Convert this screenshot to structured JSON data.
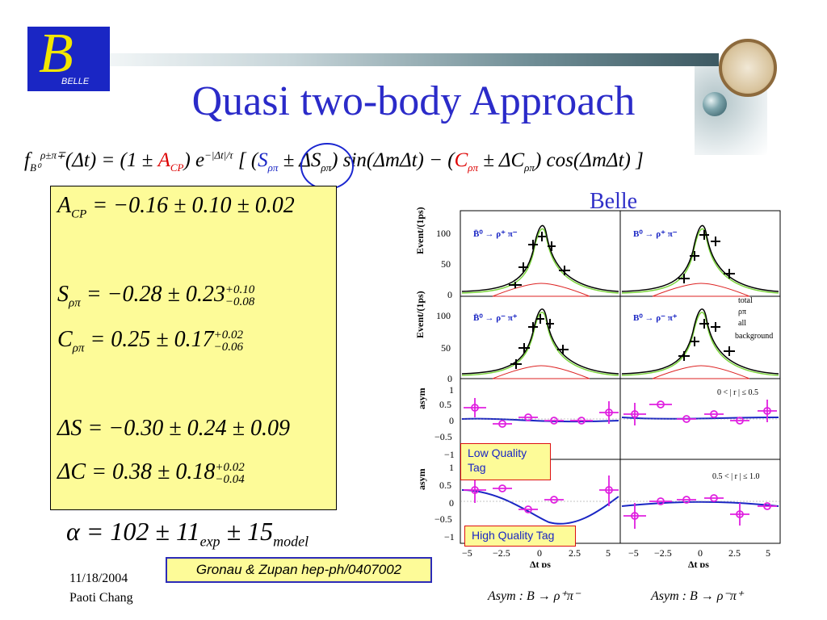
{
  "logo": {
    "letter": "B",
    "text": "BELLE"
  },
  "title": "Quasi two-body Approach",
  "formula": "f(Δt) = (1 ± A_CP) e^{−|Δt|/τ} [ (S_ρπ ± ΔS_ρπ) sin(ΔmΔt) − (C_ρπ ± ΔC_ρπ) cos(ΔmΔt) ]",
  "results": {
    "acp": "A_CP = −0.16 ± 0.10 ± 0.02",
    "s": "S_ρπ = −0.28 ± 0.23 +0.10 −0.08",
    "c": "C_ρπ = 0.25 ± 0.17 +0.02 −0.06",
    "ds": "ΔS = −0.30 ± 0.24 ± 0.09",
    "dc": "ΔC = 0.38 ± 0.18 +0.02 −0.04"
  },
  "alpha": "α = 102 ± 11 exp ± 15 model",
  "reference": "Gronau & Zupan hep-ph/0407002",
  "date": "11/18/2004",
  "author": "Paoti Chang",
  "belle_label": "Belle",
  "plots": {
    "ylabel_events": "Event/(1ps)",
    "ylabel_asym": "asym",
    "xlabel": "Δt ps",
    "x_ticks": [
      "−5",
      "−2.5",
      "0",
      "2.5",
      "5"
    ],
    "event_ticks": [
      "0",
      "50",
      "100"
    ],
    "asym_ticks": [
      "−1",
      "−0.5",
      "0",
      "0.5",
      "1"
    ],
    "panel_labels": [
      "B̄⁰ → ρ⁺ π⁻",
      "B⁰ → ρ⁺ π⁻",
      "B̄⁰ → ρ⁻ π⁺",
      "B⁰ → ρ⁻ π⁺"
    ],
    "legend": [
      "total",
      "ρπ",
      "all",
      "background"
    ],
    "r_bins": [
      "0 < | r | ≤ 0.5",
      "0.5 < | r | ≤ 1.0"
    ]
  },
  "tags": {
    "low": "Low Quality Tag",
    "high": "High Quality Tag"
  },
  "asym_labels": {
    "left": "Asym : B → ρ⁺π⁻",
    "right": "Asym : B → ρ⁻π⁺"
  },
  "colors": {
    "title": "#2b2bc9",
    "box": "#fdfb98",
    "fit": "#1a26c4",
    "data_asym": "#e020e0",
    "signal": "#7ad43a",
    "background": "#d22"
  }
}
